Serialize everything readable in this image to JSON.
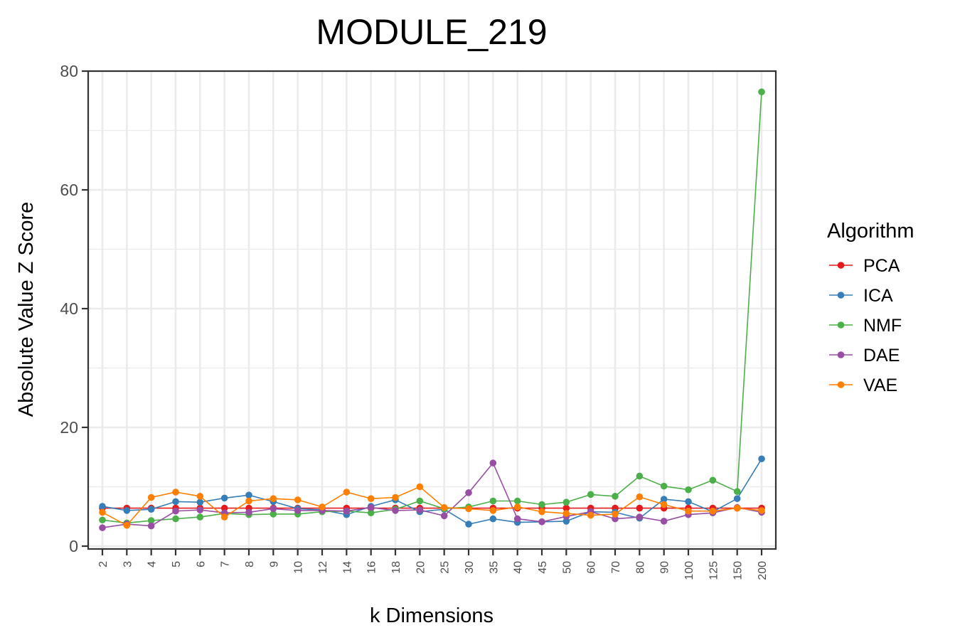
{
  "chart_data": {
    "type": "line",
    "title": "MODULE_219",
    "xlabel": "k Dimensions",
    "ylabel": "Absolute Value Z Score",
    "categories": [
      "2",
      "3",
      "4",
      "5",
      "6",
      "7",
      "8",
      "9",
      "10",
      "12",
      "14",
      "16",
      "18",
      "20",
      "25",
      "30",
      "35",
      "40",
      "45",
      "50",
      "60",
      "70",
      "80",
      "90",
      "100",
      "125",
      "150",
      "200"
    ],
    "ylim": [
      0,
      80
    ],
    "yticks": [
      0,
      20,
      40,
      60,
      80
    ],
    "grid": true,
    "legend": {
      "title": "Algorithm",
      "position": "right"
    },
    "series": [
      {
        "name": "PCA",
        "color": "#E41A1C",
        "values": [
          6.4,
          6.4,
          6.4,
          6.4,
          6.4,
          6.4,
          6.4,
          6.4,
          6.4,
          6.4,
          6.4,
          6.4,
          6.4,
          6.4,
          6.4,
          6.4,
          6.4,
          6.4,
          6.4,
          6.4,
          6.4,
          6.4,
          6.4,
          6.4,
          6.4,
          6.4,
          6.4,
          6.4
        ]
      },
      {
        "name": "ICA",
        "color": "#377EB8",
        "values": [
          6.7,
          6.0,
          6.2,
          7.5,
          7.4,
          8.1,
          8.6,
          7.5,
          6.3,
          6.1,
          5.3,
          6.7,
          7.8,
          5.8,
          6.2,
          3.7,
          4.6,
          4.0,
          4.1,
          4.2,
          5.8,
          5.7,
          4.7,
          7.9,
          7.5,
          5.8,
          8.0,
          14.7
        ]
      },
      {
        "name": "NMF",
        "color": "#4DAF4A",
        "values": [
          4.4,
          3.9,
          4.3,
          4.6,
          4.9,
          5.5,
          5.3,
          5.4,
          5.4,
          5.8,
          5.9,
          5.6,
          6.2,
          7.6,
          6.3,
          6.6,
          7.6,
          7.6,
          7.0,
          7.4,
          8.7,
          8.4,
          11.8,
          10.1,
          9.5,
          11.1,
          9.2,
          76.5
        ]
      },
      {
        "name": "DAE",
        "color": "#984EA3",
        "values": [
          3.1,
          3.7,
          3.4,
          5.9,
          6.1,
          5.6,
          5.7,
          6.3,
          6.0,
          6.0,
          5.9,
          6.5,
          6.0,
          6.1,
          5.1,
          9.0,
          14.0,
          4.6,
          4.1,
          5.0,
          5.8,
          4.6,
          4.9,
          4.2,
          5.3,
          5.6,
          6.5,
          5.7
        ]
      },
      {
        "name": "VAE",
        "color": "#FF7F00",
        "values": [
          5.7,
          3.5,
          8.2,
          9.1,
          8.4,
          4.9,
          7.6,
          8.0,
          7.8,
          6.6,
          9.1,
          8.0,
          8.2,
          10.0,
          6.5,
          6.3,
          6.0,
          6.6,
          5.8,
          5.5,
          5.2,
          5.4,
          8.3,
          7.0,
          5.9,
          5.9,
          6.4,
          6.0
        ]
      }
    ]
  }
}
